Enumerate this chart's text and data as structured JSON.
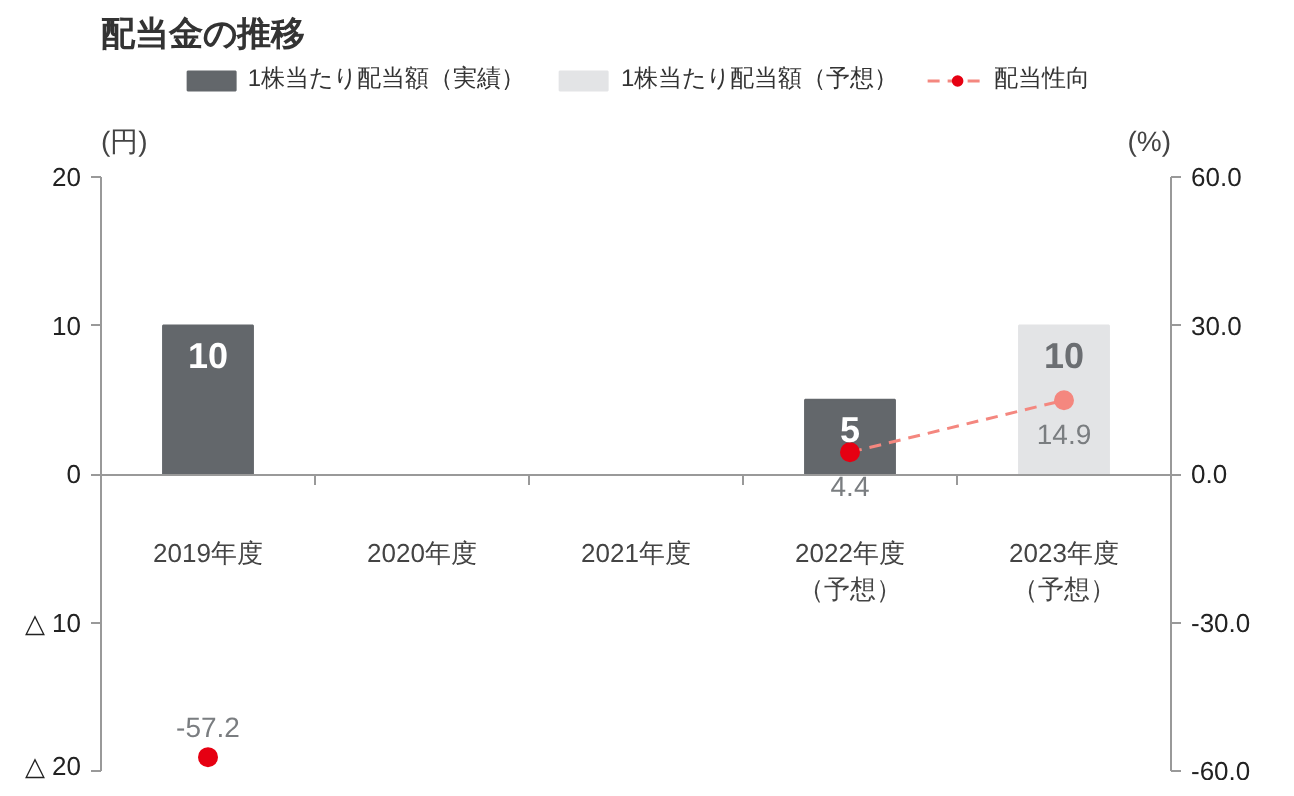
{
  "chart_data": {
    "type": "bar",
    "title": "配当金の推移",
    "categories": [
      "2019年度",
      "2020年度",
      "2021年度",
      "2022年度（予想）",
      "2023年度（予想）"
    ],
    "series": [
      {
        "name": "1株当たり配当額（実績）",
        "color": "#63676b",
        "values": [
          10,
          null,
          null,
          5,
          null
        ],
        "value_labels": [
          "10",
          null,
          null,
          "5",
          null
        ]
      },
      {
        "name": "1株当たり配当額（予想）",
        "color": "#e3e4e6",
        "values": [
          null,
          null,
          null,
          null,
          10
        ],
        "value_labels": [
          null,
          null,
          null,
          null,
          "10"
        ]
      },
      {
        "name": "配当性向",
        "type": "line",
        "axis": "y2",
        "color": "#f4877f",
        "colors": [
          "#e60012",
          "#e60012",
          "#e60012",
          "#e60012",
          "#f4877f"
        ],
        "values": [
          -57.2,
          null,
          null,
          4.4,
          14.9
        ],
        "value_labels": [
          "-57.2",
          null,
          null,
          "4.4",
          "14.9"
        ]
      }
    ],
    "ylabel": "(円)",
    "y2label": "(%)",
    "ylim": [
      -20,
      20
    ],
    "yticks": [
      {
        "value": -20,
        "label": "△ 20"
      },
      {
        "value": -10,
        "label": "△ 10"
      },
      0,
      10,
      20
    ],
    "y2lim": [
      -60,
      60
    ],
    "y2ticks": [
      {
        "value": -60,
        "label": "-60.0"
      },
      {
        "value": -30,
        "label": "-30.0"
      },
      {
        "value": 0,
        "label": "0.0"
      },
      {
        "value": 30,
        "label": "30.0"
      },
      {
        "value": 60,
        "label": "60.0"
      }
    ],
    "marker": "circle",
    "line_style": "dashed",
    "legend": "top",
    "grid": false
  }
}
